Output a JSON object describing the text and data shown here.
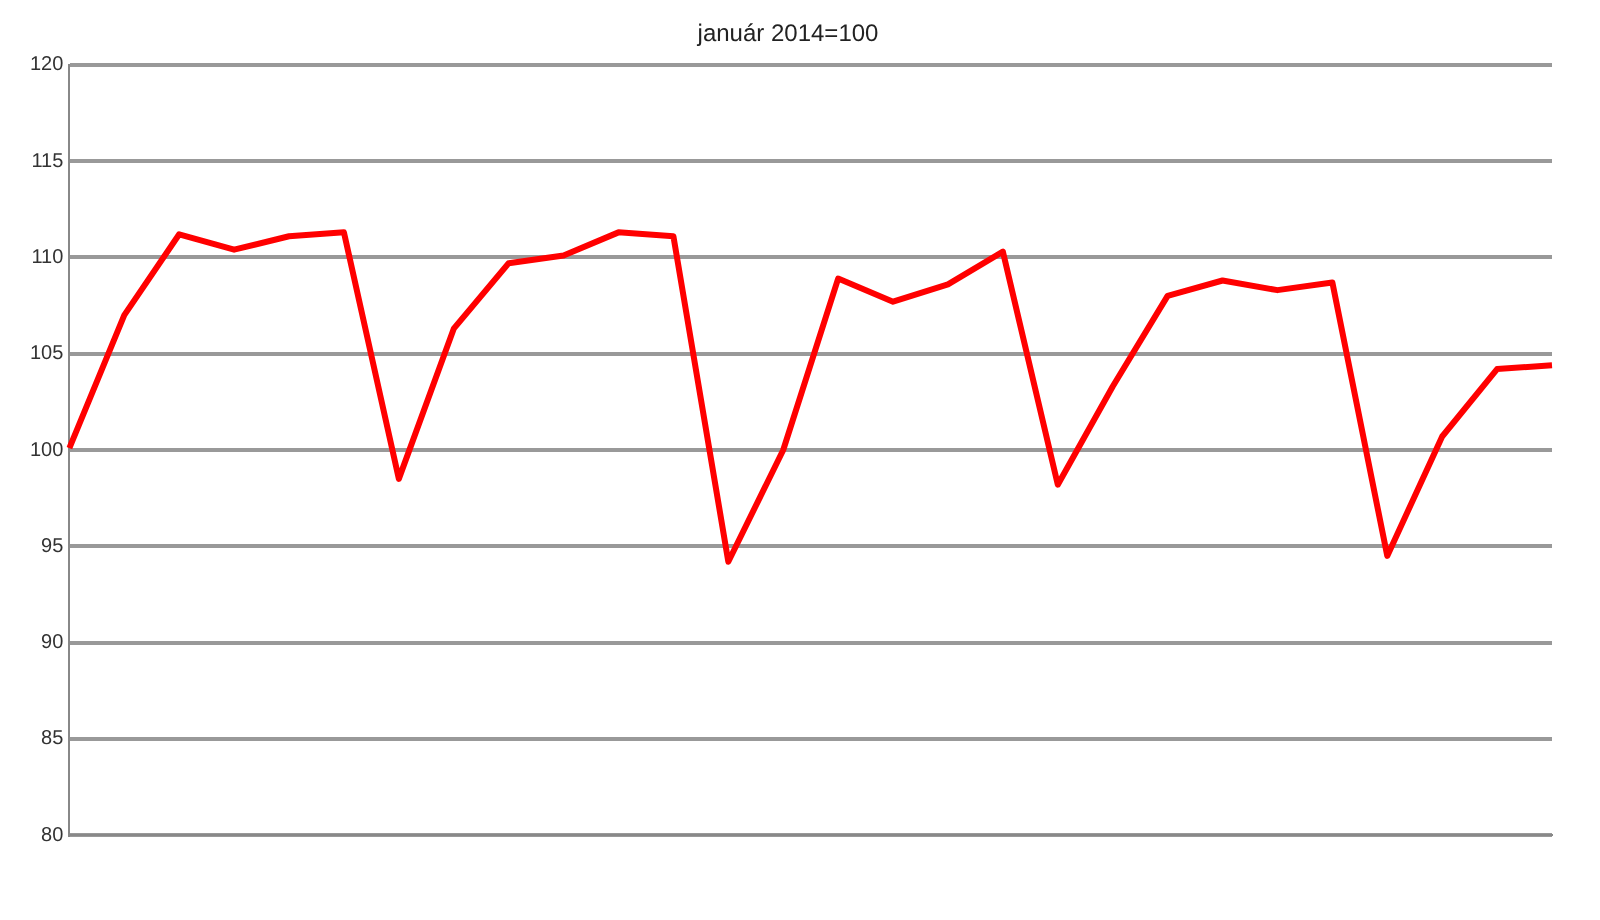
{
  "chart_data": {
    "type": "line",
    "title": "január 2014=100",
    "categories": [
      null,
      null,
      null,
      null,
      null,
      null,
      null,
      null,
      null,
      null,
      null,
      null,
      null,
      null,
      null,
      null,
      null,
      null,
      null,
      null,
      null,
      null,
      null,
      null,
      null,
      null,
      null,
      null
    ],
    "series": [
      {
        "color": "#ff0000",
        "values": [
          100.1,
          107,
          111.2,
          110.4,
          111.1,
          111.3,
          98.5,
          106.3,
          109.7,
          110.1,
          111.3,
          111.1,
          94.2,
          100,
          108.9,
          107.7,
          108.6,
          110.3,
          98.2,
          103.3,
          108,
          108.8,
          108.3,
          108.7,
          94.5,
          100.7,
          104.2,
          104.4
        ]
      }
    ],
    "ylim": [
      80,
      120
    ],
    "yticks": [
      80,
      85,
      90,
      95,
      100,
      105,
      110,
      115,
      120
    ],
    "grid": "y",
    "legend": false,
    "marker": "none",
    "line_style": "solid"
  }
}
